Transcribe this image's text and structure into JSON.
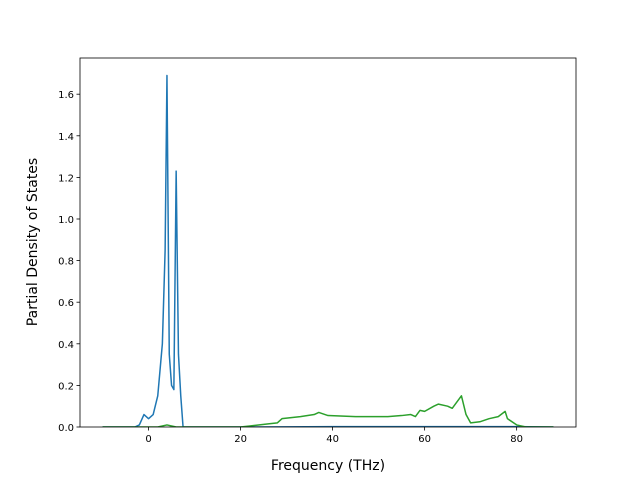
{
  "chart_data": {
    "type": "line",
    "xlabel": "Frequency (THz)",
    "ylabel": "Partial Density of States",
    "xlim": [
      -14.9,
      92.9
    ],
    "ylim": [
      0,
      1.774
    ],
    "xticks": [
      0,
      20,
      40,
      60,
      80
    ],
    "yticks": [
      {
        "value": 0,
        "label": "0.0"
      },
      0.2,
      0.4,
      0.6,
      0.8,
      {
        "value": 1,
        "label": "1.0"
      },
      1.2,
      1.4,
      1.6
    ],
    "series": [
      {
        "color": "#1f77b4",
        "x": [
          -10,
          -3,
          -2,
          -1,
          0,
          1,
          2,
          3,
          3.6,
          4,
          4.5,
          5,
          5.5,
          6,
          6.5,
          7,
          7.5,
          20,
          40,
          60,
          80,
          88
        ],
        "values": [
          0,
          0,
          0.01,
          0.06,
          0.04,
          0.06,
          0.15,
          0.4,
          0.85,
          1.69,
          0.35,
          0.2,
          0.18,
          1.23,
          0.35,
          0.15,
          0,
          0,
          0.002,
          0.002,
          0.002,
          0
        ]
      },
      {
        "color": "#2ca02c",
        "x": [
          -10,
          2,
          4,
          6,
          20,
          22,
          26,
          28,
          29,
          33,
          36,
          37,
          39,
          45,
          52,
          55,
          57,
          58,
          59,
          60,
          62,
          63,
          65,
          66,
          68,
          69,
          70,
          72,
          74,
          76,
          77.5,
          78,
          80,
          82,
          88
        ],
        "values": [
          0,
          0,
          0.01,
          0,
          0,
          0.005,
          0.015,
          0.02,
          0.04,
          0.05,
          0.06,
          0.07,
          0.055,
          0.05,
          0.05,
          0.055,
          0.06,
          0.05,
          0.08,
          0.075,
          0.1,
          0.11,
          0.1,
          0.09,
          0.15,
          0.06,
          0.02,
          0.025,
          0.04,
          0.05,
          0.075,
          0.04,
          0.01,
          0,
          0
        ]
      }
    ]
  }
}
